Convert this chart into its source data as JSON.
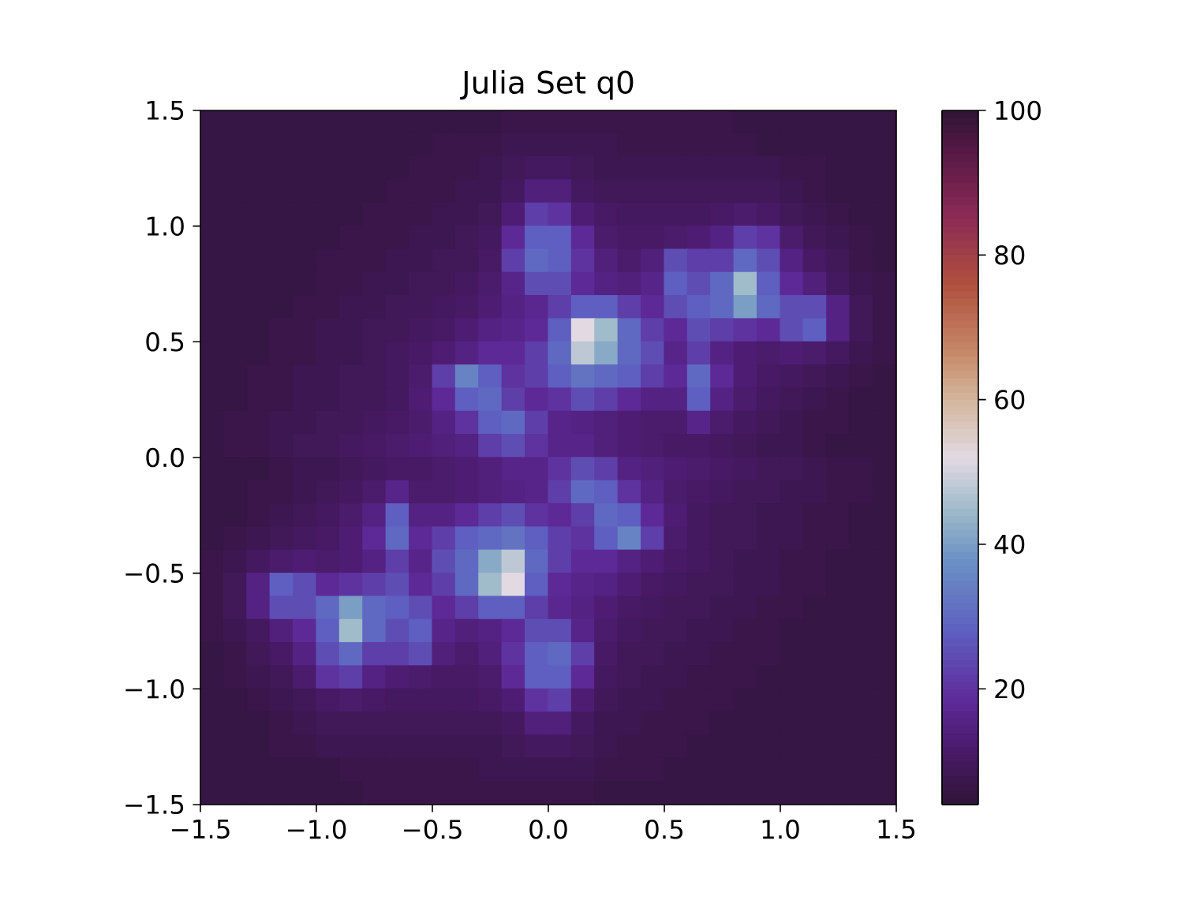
{
  "chart_data": {
    "type": "heatmap",
    "title": "Julia Set q0",
    "x": [
      -1.45,
      -1.35,
      -1.25,
      -1.15,
      -1.05,
      -0.95,
      -0.85,
      -0.75,
      -0.65,
      -0.55,
      -0.45,
      -0.35,
      -0.25,
      -0.15,
      -0.05,
      0.05,
      0.15,
      0.25,
      0.35,
      0.45,
      0.55,
      0.65,
      0.75,
      0.85,
      0.95,
      1.05,
      1.15,
      1.25,
      1.35,
      1.45
    ],
    "y": [
      1.45,
      1.35,
      1.25,
      1.15,
      1.05,
      0.95,
      0.85,
      0.75,
      0.65,
      0.55,
      0.45,
      0.35,
      0.25,
      0.15,
      0.05,
      -0.05,
      -0.15,
      -0.25,
      -0.35,
      -0.45,
      -0.55,
      -0.65,
      -0.75,
      -0.85,
      -0.95,
      -1.05,
      -1.15,
      -1.25,
      -1.35,
      -1.45
    ],
    "xlim": [
      -1.5,
      1.5
    ],
    "ylim": [
      -1.5,
      1.5
    ],
    "xticks": [
      {
        "value": -1.5,
        "label": "−1.5"
      },
      {
        "value": -1.0,
        "label": "−1.0"
      },
      {
        "value": -0.5,
        "label": "−0.5"
      },
      {
        "value": 0,
        "label": "0.0"
      },
      {
        "value": 0.5,
        "label": "0.5"
      },
      {
        "value": 1.0,
        "label": "1.0"
      },
      {
        "value": 1.5,
        "label": "1.5"
      }
    ],
    "yticks": [
      {
        "value": -1.5,
        "label": "−1.5"
      },
      {
        "value": -1.0,
        "label": "−1.0"
      },
      {
        "value": -0.5,
        "label": "−0.5"
      },
      {
        "value": 0,
        "label": "0.0"
      },
      {
        "value": 0.5,
        "label": "0.5"
      },
      {
        "value": 1.0,
        "label": "1.0"
      },
      {
        "value": 1.5,
        "label": "1.5"
      }
    ],
    "clim": [
      4,
      100
    ],
    "cticks": [
      20,
      40,
      60,
      80,
      100
    ],
    "cells": [
      [
        6,
        6,
        6,
        6,
        6,
        6,
        6,
        6,
        6,
        6,
        6,
        6,
        6,
        7,
        7,
        7,
        7,
        7,
        7,
        7,
        7,
        7,
        7,
        6,
        6,
        6,
        6,
        6,
        6,
        6
      ],
      [
        6,
        6,
        6,
        6,
        6,
        6,
        6,
        6,
        6,
        6,
        7,
        7,
        7,
        8,
        8,
        8,
        8,
        8,
        7,
        7,
        7,
        7,
        7,
        7,
        6,
        6,
        6,
        6,
        6,
        6
      ],
      [
        6,
        6,
        6,
        6,
        6,
        6,
        6,
        6,
        6,
        7,
        7,
        7,
        8,
        9,
        10,
        10,
        9,
        8,
        8,
        8,
        8,
        8,
        8,
        8,
        8,
        7,
        7,
        6,
        6,
        6
      ],
      [
        6,
        6,
        6,
        6,
        6,
        6,
        6,
        6,
        7,
        7,
        7,
        8,
        8,
        10,
        14,
        14,
        10,
        9,
        9,
        9,
        9,
        9,
        9,
        9,
        9,
        8,
        7,
        6,
        6,
        6
      ],
      [
        6,
        6,
        6,
        6,
        6,
        6,
        6,
        7,
        7,
        7,
        8,
        8,
        9,
        13,
        22,
        20,
        13,
        11,
        10,
        10,
        10,
        10,
        11,
        12,
        11,
        9,
        8,
        7,
        6,
        6
      ],
      [
        6,
        6,
        6,
        6,
        6,
        6,
        7,
        7,
        7,
        8,
        8,
        9,
        10,
        18,
        28,
        28,
        18,
        12,
        11,
        11,
        12,
        13,
        15,
        22,
        20,
        12,
        9,
        8,
        7,
        6
      ],
      [
        6,
        6,
        6,
        6,
        6,
        7,
        7,
        7,
        8,
        8,
        9,
        9,
        11,
        22,
        30,
        28,
        20,
        14,
        12,
        14,
        25,
        22,
        22,
        30,
        25,
        15,
        11,
        9,
        7,
        6
      ],
      [
        6,
        6,
        6,
        6,
        6,
        7,
        7,
        8,
        8,
        9,
        9,
        10,
        12,
        16,
        25,
        25,
        18,
        15,
        14,
        16,
        28,
        25,
        30,
        45,
        28,
        18,
        14,
        10,
        8,
        7
      ],
      [
        6,
        6,
        6,
        6,
        7,
        7,
        8,
        8,
        9,
        9,
        10,
        11,
        13,
        15,
        17,
        22,
        28,
        28,
        22,
        18,
        25,
        28,
        30,
        40,
        30,
        25,
        25,
        15,
        9,
        7
      ],
      [
        6,
        6,
        6,
        7,
        7,
        8,
        8,
        9,
        9,
        10,
        11,
        13,
        15,
        16,
        18,
        28,
        52,
        45,
        30,
        22,
        18,
        25,
        22,
        20,
        18,
        25,
        28,
        15,
        9,
        7
      ],
      [
        6,
        6,
        6,
        7,
        7,
        8,
        8,
        9,
        10,
        11,
        13,
        15,
        18,
        18,
        22,
        30,
        48,
        42,
        30,
        25,
        16,
        22,
        15,
        13,
        12,
        13,
        12,
        10,
        8,
        7
      ],
      [
        6,
        6,
        7,
        7,
        8,
        8,
        9,
        9,
        10,
        12,
        22,
        35,
        28,
        20,
        22,
        28,
        32,
        30,
        28,
        22,
        18,
        30,
        18,
        13,
        11,
        10,
        9,
        8,
        7,
        6
      ],
      [
        6,
        6,
        7,
        7,
        8,
        8,
        9,
        9,
        10,
        13,
        18,
        28,
        30,
        22,
        18,
        20,
        25,
        22,
        18,
        15,
        15,
        28,
        15,
        12,
        10,
        9,
        8,
        7,
        6,
        6
      ],
      [
        6,
        7,
        7,
        8,
        8,
        9,
        9,
        10,
        11,
        12,
        15,
        20,
        28,
        30,
        22,
        16,
        15,
        14,
        13,
        12,
        12,
        16,
        12,
        10,
        9,
        8,
        7,
        7,
        6,
        6
      ],
      [
        6,
        7,
        7,
        8,
        9,
        9,
        10,
        11,
        12,
        13,
        14,
        15,
        22,
        25,
        20,
        16,
        16,
        14,
        13,
        12,
        11,
        11,
        10,
        9,
        8,
        8,
        7,
        6,
        6,
        6
      ],
      [
        6,
        6,
        6,
        7,
        8,
        8,
        9,
        10,
        11,
        11,
        12,
        13,
        14,
        16,
        16,
        20,
        25,
        22,
        15,
        14,
        13,
        12,
        11,
        10,
        9,
        9,
        8,
        7,
        7,
        6
      ],
      [
        6,
        6,
        7,
        7,
        8,
        9,
        10,
        12,
        16,
        12,
        12,
        13,
        14,
        15,
        16,
        22,
        30,
        28,
        20,
        15,
        12,
        11,
        10,
        9,
        9,
        8,
        8,
        7,
        7,
        6
      ],
      [
        6,
        6,
        7,
        8,
        9,
        10,
        12,
        15,
        28,
        15,
        15,
        18,
        22,
        25,
        20,
        18,
        22,
        30,
        28,
        18,
        13,
        10,
        9,
        9,
        8,
        8,
        7,
        7,
        6,
        6
      ],
      [
        6,
        7,
        8,
        9,
        10,
        11,
        13,
        18,
        30,
        18,
        22,
        28,
        30,
        32,
        28,
        22,
        20,
        28,
        35,
        22,
        12,
        10,
        9,
        9,
        8,
        8,
        7,
        7,
        6,
        6
      ],
      [
        7,
        8,
        10,
        12,
        13,
        12,
        13,
        15,
        22,
        16,
        25,
        30,
        42,
        48,
        30,
        22,
        18,
        18,
        15,
        13,
        11,
        10,
        9,
        8,
        8,
        7,
        7,
        6,
        6,
        6
      ],
      [
        7,
        9,
        15,
        28,
        25,
        18,
        20,
        22,
        25,
        18,
        22,
        30,
        45,
        52,
        28,
        18,
        16,
        15,
        13,
        11,
        10,
        9,
        9,
        8,
        8,
        7,
        7,
        6,
        6,
        6
      ],
      [
        7,
        9,
        15,
        25,
        25,
        30,
        40,
        30,
        28,
        25,
        18,
        22,
        28,
        28,
        22,
        17,
        15,
        13,
        11,
        10,
        9,
        9,
        8,
        8,
        7,
        7,
        6,
        6,
        6,
        6
      ],
      [
        7,
        8,
        10,
        14,
        18,
        28,
        45,
        30,
        25,
        28,
        16,
        14,
        15,
        18,
        25,
        25,
        16,
        12,
        10,
        9,
        9,
        8,
        8,
        7,
        7,
        6,
        6,
        6,
        6,
        6
      ],
      [
        6,
        7,
        9,
        11,
        15,
        25,
        30,
        22,
        22,
        25,
        14,
        12,
        14,
        20,
        28,
        30,
        22,
        11,
        9,
        9,
        8,
        8,
        7,
        7,
        7,
        6,
        6,
        6,
        6,
        6
      ],
      [
        6,
        7,
        8,
        9,
        12,
        20,
        22,
        15,
        13,
        12,
        11,
        11,
        12,
        18,
        28,
        28,
        18,
        10,
        9,
        8,
        8,
        7,
        7,
        7,
        6,
        6,
        6,
        6,
        6,
        6
      ],
      [
        6,
        6,
        7,
        8,
        9,
        11,
        12,
        11,
        10,
        10,
        10,
        10,
        11,
        13,
        20,
        22,
        13,
        9,
        8,
        8,
        7,
        7,
        7,
        6,
        6,
        6,
        6,
        6,
        6,
        6
      ],
      [
        6,
        6,
        6,
        7,
        8,
        9,
        9,
        9,
        9,
        9,
        9,
        9,
        9,
        10,
        14,
        14,
        10,
        8,
        8,
        7,
        7,
        7,
        6,
        6,
        6,
        6,
        6,
        6,
        6,
        6
      ],
      [
        6,
        6,
        6,
        7,
        7,
        8,
        8,
        8,
        8,
        8,
        8,
        8,
        8,
        9,
        10,
        10,
        9,
        8,
        7,
        7,
        7,
        6,
        6,
        6,
        6,
        6,
        6,
        6,
        6,
        6
      ],
      [
        6,
        6,
        6,
        6,
        6,
        6,
        7,
        7,
        7,
        7,
        7,
        7,
        8,
        8,
        8,
        8,
        8,
        7,
        7,
        7,
        6,
        6,
        6,
        6,
        6,
        6,
        6,
        6,
        6,
        6
      ],
      [
        6,
        6,
        6,
        6,
        6,
        6,
        6,
        7,
        7,
        7,
        7,
        7,
        7,
        7,
        7,
        7,
        7,
        6,
        6,
        6,
        6,
        6,
        6,
        6,
        6,
        6,
        6,
        6,
        6,
        6
      ]
    ]
  }
}
